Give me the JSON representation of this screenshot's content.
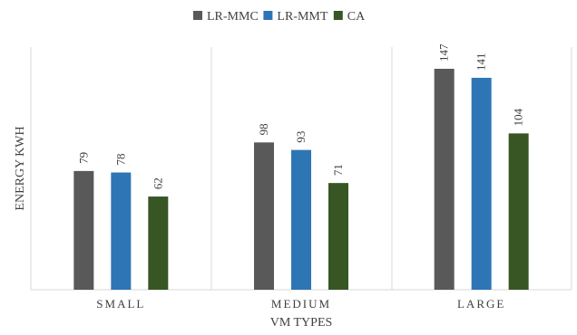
{
  "chart_data": {
    "type": "bar",
    "title": "",
    "xlabel": "VM TYPES",
    "ylabel": "ENERGY KWH",
    "categories": [
      "SMALL",
      "MEDIUM",
      "LARGE"
    ],
    "series": [
      {
        "name": "LR-MMC",
        "values": [
          79,
          98,
          147
        ],
        "color": "#595959"
      },
      {
        "name": "LR-MMT",
        "values": [
          78,
          93,
          141
        ],
        "color": "#2e75b6"
      },
      {
        "name": "CA",
        "values": [
          62,
          71,
          104
        ],
        "color": "#375623"
      }
    ],
    "ylim": [
      0,
      160
    ],
    "grid": false,
    "legend_position": "top"
  }
}
